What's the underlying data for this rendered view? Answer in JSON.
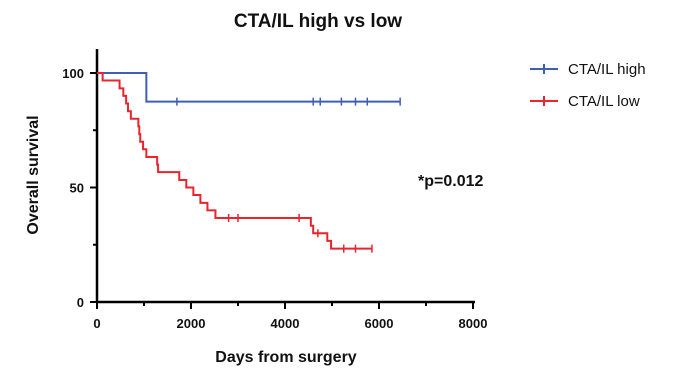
{
  "chart_data": {
    "type": "line",
    "subtype": "kaplan-meier step",
    "title": "CTA/IL high vs low",
    "xlabel": "Days from surgery",
    "ylabel": "Overall survival",
    "xlim": [
      0,
      8000
    ],
    "ylim": [
      0,
      100
    ],
    "xticks": [
      0,
      2000,
      4000,
      6000,
      8000
    ],
    "yticks": [
      0,
      50,
      100
    ],
    "grid": false,
    "legend_position": "top-right",
    "annotation": "*p=0.012",
    "series": [
      {
        "name": "CTA/IL high",
        "color": "#3f5fb5",
        "steps": [
          [
            0,
            100
          ],
          [
            1050,
            100
          ],
          [
            1050,
            87.5
          ],
          [
            6450,
            87.5
          ]
        ],
        "censor_x": [
          1700,
          4600,
          4750,
          5200,
          5500,
          5750,
          6450
        ]
      },
      {
        "name": "CTA/IL low",
        "color": "#e8242c",
        "steps": [
          [
            0,
            100
          ],
          [
            120,
            100
          ],
          [
            120,
            96.7
          ],
          [
            480,
            96.7
          ],
          [
            480,
            93.3
          ],
          [
            560,
            93.3
          ],
          [
            560,
            90
          ],
          [
            620,
            90
          ],
          [
            620,
            86.7
          ],
          [
            660,
            86.7
          ],
          [
            660,
            83.3
          ],
          [
            720,
            83.3
          ],
          [
            720,
            80
          ],
          [
            880,
            80
          ],
          [
            880,
            76.7
          ],
          [
            900,
            76.7
          ],
          [
            900,
            73.3
          ],
          [
            920,
            73.3
          ],
          [
            920,
            70
          ],
          [
            980,
            70
          ],
          [
            980,
            66.7
          ],
          [
            1050,
            66.7
          ],
          [
            1050,
            63.3
          ],
          [
            1280,
            63.3
          ],
          [
            1280,
            60
          ],
          [
            1300,
            60
          ],
          [
            1300,
            56.7
          ],
          [
            1750,
            56.7
          ],
          [
            1750,
            53.3
          ],
          [
            1900,
            53.3
          ],
          [
            1900,
            50
          ],
          [
            2050,
            50
          ],
          [
            2050,
            46.7
          ],
          [
            2200,
            46.7
          ],
          [
            2200,
            43.3
          ],
          [
            2350,
            43.3
          ],
          [
            2350,
            40
          ],
          [
            2520,
            40
          ],
          [
            2520,
            36.7
          ],
          [
            4550,
            36.7
          ],
          [
            4550,
            33.3
          ],
          [
            4600,
            33.3
          ],
          [
            4600,
            30
          ],
          [
            4900,
            30
          ],
          [
            4900,
            26.7
          ],
          [
            4980,
            26.7
          ],
          [
            4980,
            23.3
          ],
          [
            5850,
            23.3
          ]
        ],
        "censor_x": [
          2800,
          3000,
          4300,
          4700,
          5250,
          5500,
          5850
        ]
      }
    ]
  }
}
